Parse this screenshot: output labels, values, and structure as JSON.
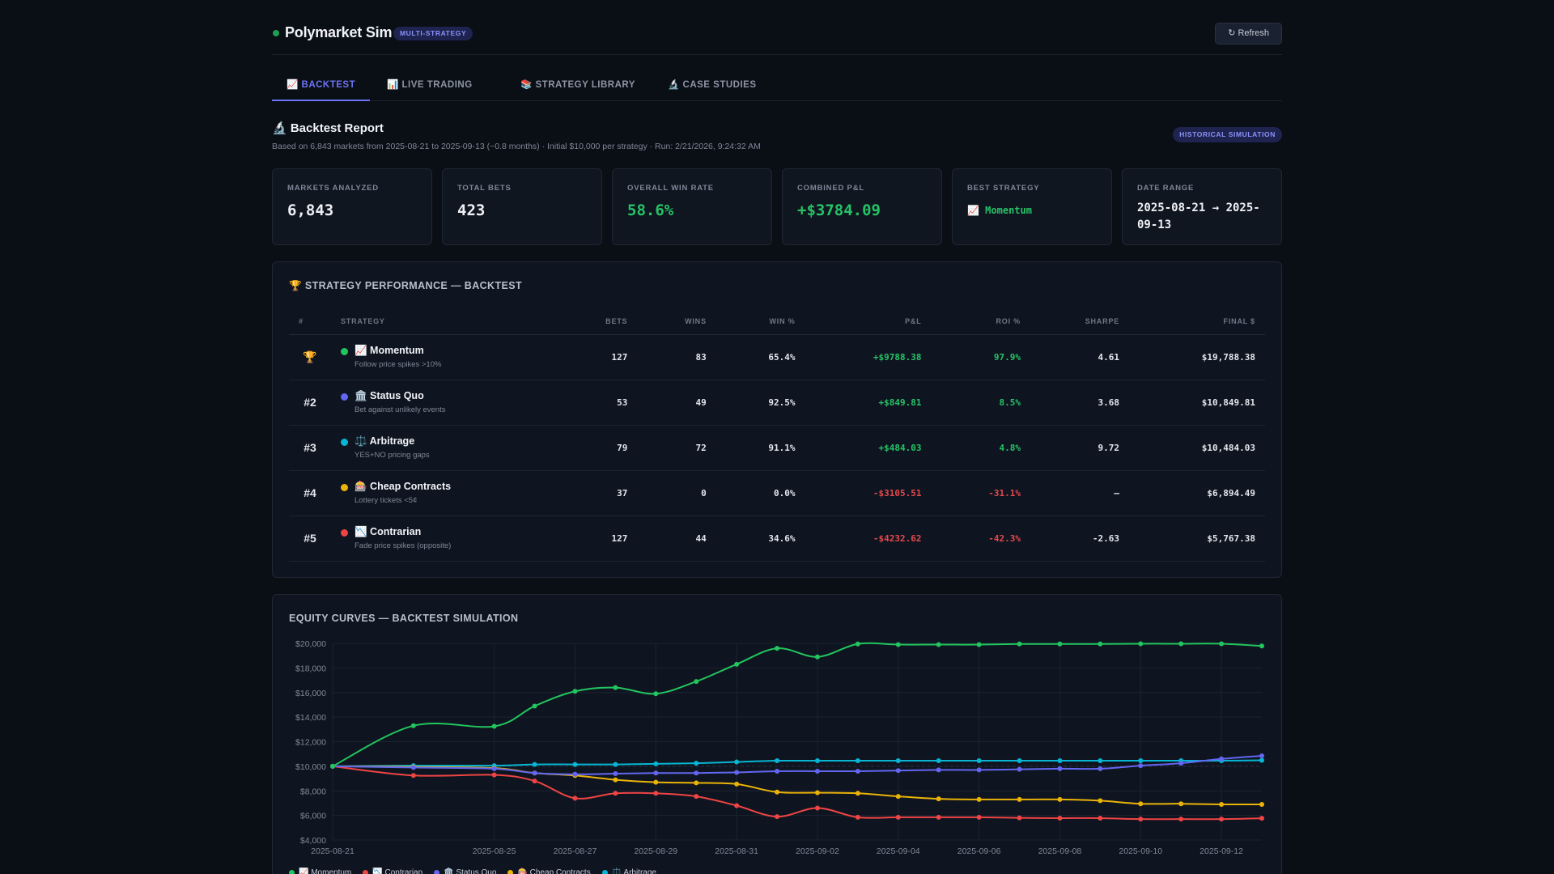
{
  "header": {
    "title": "Polymarket Sim",
    "badge": "MULTI-STRATEGY",
    "refresh_label": "↻ Refresh"
  },
  "tabs": [
    {
      "label": "📈 BACKTEST",
      "active": true
    },
    {
      "label": "📊 LIVE TRADING",
      "active": false
    },
    {
      "label": "📚 STRATEGY LIBRARY",
      "active": false
    },
    {
      "label": "🔬 CASE STUDIES",
      "active": false
    }
  ],
  "report": {
    "title": "🔬 Backtest Report",
    "subtitle": "Based on 6,843 markets from 2025-08-21 to 2025-09-13 (~0.8 months) · Initial $10,000 per strategy · Run: 2/21/2026, 9:24:32 AM",
    "badge": "HISTORICAL SIMULATION"
  },
  "stats": [
    {
      "label": "MARKETS ANALYZED",
      "value": "6,843"
    },
    {
      "label": "TOTAL BETS",
      "value": "423"
    },
    {
      "label": "OVERALL WIN RATE",
      "value": "58.6%"
    },
    {
      "label": "COMBINED P&L",
      "value": "+$3784.09"
    },
    {
      "label": "BEST STRATEGY",
      "value": "📈 Momentum"
    },
    {
      "label": "DATE RANGE",
      "value": "2025-08-21 → 2025-09-13"
    }
  ],
  "performance": {
    "title": "🏆 STRATEGY PERFORMANCE — BACKTEST",
    "columns": [
      "#",
      "STRATEGY",
      "BETS",
      "WINS",
      "WIN %",
      "P&L",
      "ROI %",
      "SHARPE",
      "FINAL $"
    ],
    "rows": [
      {
        "rank": "🏆",
        "name": "📈 Momentum",
        "desc": "Follow price spikes >10%",
        "color": "#22c55e",
        "bets": "127",
        "wins": "83",
        "winpct": "65.4%",
        "pnl": "+$9788.38",
        "roi": "97.9%",
        "sharpe": "4.61",
        "final": "$19,788.38",
        "sign": "pos"
      },
      {
        "rank": "#2",
        "name": "🏛️ Status Quo",
        "desc": "Bet against unlikely events",
        "color": "#6366f1",
        "bets": "53",
        "wins": "49",
        "winpct": "92.5%",
        "pnl": "+$849.81",
        "roi": "8.5%",
        "sharpe": "3.68",
        "final": "$10,849.81",
        "sign": "pos"
      },
      {
        "rank": "#3",
        "name": "⚖️ Arbitrage",
        "desc": "YES+NO pricing gaps",
        "color": "#06b6d4",
        "bets": "79",
        "wins": "72",
        "winpct": "91.1%",
        "pnl": "+$484.03",
        "roi": "4.8%",
        "sharpe": "9.72",
        "final": "$10,484.03",
        "sign": "pos"
      },
      {
        "rank": "#4",
        "name": "🎰 Cheap Contracts",
        "desc": "Lottery tickets <5¢",
        "color": "#eab308",
        "bets": "37",
        "wins": "0",
        "winpct": "0.0%",
        "pnl": "-$3105.51",
        "roi": "-31.1%",
        "sharpe": "—",
        "final": "$6,894.49",
        "sign": "neg"
      },
      {
        "rank": "#5",
        "name": "📉 Contrarian",
        "desc": "Fade price spikes (opposite)",
        "color": "#ef4444",
        "bets": "127",
        "wins": "44",
        "winpct": "34.6%",
        "pnl": "-$4232.62",
        "roi": "-42.3%",
        "sharpe": "-2.63",
        "final": "$5,767.38",
        "sign": "neg"
      }
    ]
  },
  "chart_data": {
    "type": "line",
    "title": "EQUITY CURVES — BACKTEST SIMULATION",
    "x": [
      "2025-08-21",
      "2025-08-23",
      "2025-08-25",
      "2025-08-26",
      "2025-08-27",
      "2025-08-28",
      "2025-08-29",
      "2025-08-30",
      "2025-08-31",
      "2025-09-01",
      "2025-09-02",
      "2025-09-03",
      "2025-09-04",
      "2025-09-05",
      "2025-09-06",
      "2025-09-07",
      "2025-09-08",
      "2025-09-09",
      "2025-09-10",
      "2025-09-11",
      "2025-09-12",
      "2025-09-13"
    ],
    "x_ticks": [
      "2025-08-21",
      "2025-08-25",
      "2025-08-27",
      "2025-08-29",
      "2025-08-31",
      "2025-09-02",
      "2025-09-04",
      "2025-09-06",
      "2025-09-08",
      "2025-09-10",
      "2025-09-12"
    ],
    "ylim": [
      4000,
      20000
    ],
    "y_ticks": [
      "$4,000",
      "$6,000",
      "$8,000",
      "$10,000",
      "$12,000",
      "$14,000",
      "$16,000",
      "$18,000",
      "$20,000"
    ],
    "grid": true,
    "legend": "bottom-left",
    "series": [
      {
        "name": "📈 Momentum",
        "color": "#22c55e",
        "values": [
          10000,
          13300,
          13250,
          14900,
          16100,
          16400,
          15900,
          16900,
          18300,
          19600,
          18900,
          19950,
          19900,
          19900,
          19900,
          19950,
          19950,
          19950,
          19970,
          19970,
          19970,
          19788
        ]
      },
      {
        "name": "📉 Contrarian",
        "color": "#ef4444",
        "values": [
          10000,
          9250,
          9300,
          8800,
          7400,
          7800,
          7800,
          7550,
          6800,
          5900,
          6600,
          5850,
          5850,
          5850,
          5850,
          5800,
          5780,
          5780,
          5700,
          5700,
          5700,
          5767
        ]
      },
      {
        "name": "🏛️ Status Quo",
        "color": "#6366f1",
        "values": [
          10000,
          9900,
          9800,
          9450,
          9350,
          9400,
          9450,
          9450,
          9500,
          9600,
          9600,
          9600,
          9650,
          9700,
          9700,
          9750,
          9800,
          9800,
          10050,
          10250,
          10600,
          10850
        ]
      },
      {
        "name": "🎰 Cheap Contracts",
        "color": "#eab308",
        "values": [
          10000,
          9950,
          9850,
          9450,
          9250,
          8900,
          8700,
          8650,
          8550,
          7900,
          7850,
          7800,
          7550,
          7350,
          7300,
          7300,
          7300,
          7200,
          6950,
          6950,
          6900,
          6894
        ]
      },
      {
        "name": "⚖️ Arbitrage",
        "color": "#06b6d4",
        "values": [
          10000,
          10050,
          10050,
          10150,
          10150,
          10150,
          10200,
          10250,
          10350,
          10450,
          10450,
          10450,
          10450,
          10450,
          10450,
          10450,
          10450,
          10450,
          10450,
          10450,
          10450,
          10484
        ]
      }
    ]
  }
}
